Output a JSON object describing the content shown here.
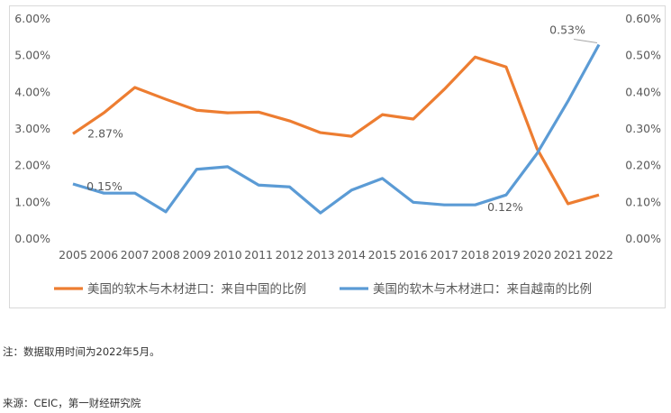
{
  "chart_data": {
    "type": "line",
    "categories": [
      "2005",
      "2006",
      "2007",
      "2008",
      "2009",
      "2010",
      "2011",
      "2012",
      "2013",
      "2014",
      "2015",
      "2016",
      "2017",
      "2018",
      "2019",
      "2020",
      "2021",
      "2022"
    ],
    "series": [
      {
        "name": "美国的软木与木材进口：来自中国的比例",
        "axis": "left",
        "color": "#ED7D31",
        "values": [
          2.87,
          3.44,
          4.13,
          3.81,
          3.51,
          3.44,
          3.46,
          3.22,
          2.9,
          2.8,
          3.39,
          3.27,
          4.08,
          4.96,
          4.69,
          2.46,
          0.96,
          1.2
        ]
      },
      {
        "name": "美国的软木与木材进口：来自越南的比例",
        "axis": "right",
        "color": "#5B9BD5",
        "values": [
          0.15,
          0.125,
          0.125,
          0.074,
          0.19,
          0.197,
          0.147,
          0.142,
          0.071,
          0.133,
          0.165,
          0.1,
          0.093,
          0.093,
          0.12,
          0.233,
          0.376,
          0.53
        ]
      }
    ],
    "left_axis": {
      "ylim": [
        0,
        6
      ],
      "ticks": [
        "0.00%",
        "1.00%",
        "2.00%",
        "3.00%",
        "4.00%",
        "5.00%",
        "6.00%"
      ]
    },
    "right_axis": {
      "ylim": [
        0,
        0.6
      ],
      "ticks": [
        "0.00%",
        "0.10%",
        "0.20%",
        "0.30%",
        "0.40%",
        "0.50%",
        "0.60%"
      ]
    },
    "annotations": [
      {
        "series": 0,
        "index": 0,
        "text": "2.87%"
      },
      {
        "series": 1,
        "index": 0,
        "text": "0.15%"
      },
      {
        "series": 1,
        "index": 14,
        "text": "0.12%"
      },
      {
        "series": 1,
        "index": 17,
        "text": "0.53%"
      }
    ],
    "legend": "bottom",
    "grid": false
  },
  "notes": {
    "note": "注：数据取用时间为2022年5月。",
    "source": "来源：CEIC，第一财经研究院"
  }
}
